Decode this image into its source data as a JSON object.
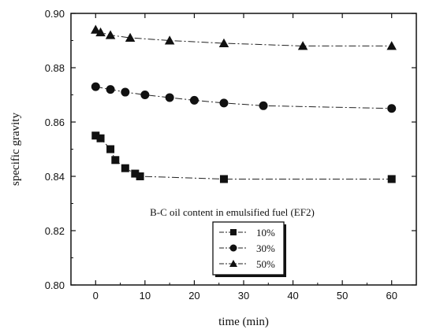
{
  "chart_data": {
    "type": "scatter",
    "title": "",
    "xlabel": "time (min)",
    "ylabel": "specific gravity",
    "xlim": [
      -5,
      65
    ],
    "ylim": [
      0.8,
      0.9
    ],
    "x_ticks": [
      0,
      10,
      20,
      30,
      40,
      50,
      60
    ],
    "y_ticks": [
      0.8,
      0.82,
      0.84,
      0.86,
      0.88,
      0.9
    ],
    "x_tick_labels": [
      "0",
      "10",
      "20",
      "30",
      "40",
      "50",
      "60"
    ],
    "y_tick_labels": [
      "0.80",
      "0.82",
      "0.84",
      "0.86",
      "0.88",
      "0.90"
    ],
    "grid": false,
    "legend_position": "lower-center",
    "annotation": "B-C oil content in emulsified fuel (EF2)",
    "series": [
      {
        "name": "10%",
        "marker": "square",
        "line": "dashed",
        "x": [
          0,
          1,
          3,
          4,
          6,
          8,
          9,
          26,
          60
        ],
        "y": [
          0.855,
          0.854,
          0.85,
          0.846,
          0.843,
          0.841,
          0.84,
          0.839,
          0.839
        ]
      },
      {
        "name": "30%",
        "marker": "circle",
        "line": "dashed",
        "x": [
          0,
          3,
          6,
          10,
          15,
          20,
          26,
          34,
          60
        ],
        "y": [
          0.873,
          0.872,
          0.871,
          0.87,
          0.869,
          0.868,
          0.867,
          0.866,
          0.865
        ]
      },
      {
        "name": "50%",
        "marker": "triangle",
        "line": "dashed",
        "x": [
          0,
          1,
          3,
          7,
          15,
          26,
          42,
          60
        ],
        "y": [
          0.894,
          0.893,
          0.892,
          0.891,
          0.89,
          0.889,
          0.888,
          0.888
        ]
      }
    ]
  }
}
